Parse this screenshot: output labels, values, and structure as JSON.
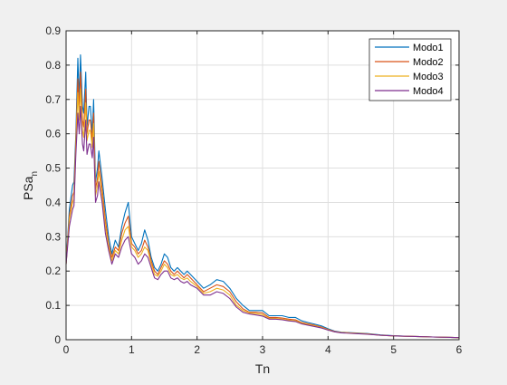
{
  "chart_data": {
    "type": "line",
    "title": "",
    "xlabel": "Tn",
    "ylabel_main": "PSa",
    "ylabel_sub": "n",
    "xlim": [
      0,
      6
    ],
    "ylim": [
      0,
      0.9
    ],
    "xticks": [
      0,
      1,
      2,
      3,
      4,
      5,
      6
    ],
    "yticks": [
      0,
      0.1,
      0.2,
      0.3,
      0.4,
      0.5,
      0.6,
      0.7,
      0.8,
      0.9
    ],
    "grid": true,
    "legend_position": "top-right",
    "colors": {
      "background": "#f0f0f0",
      "axes_bg": "#ffffff",
      "grid": "#dfdfdf",
      "axis": "#262626"
    },
    "x": [
      0,
      0.05,
      0.1,
      0.12,
      0.15,
      0.18,
      0.2,
      0.22,
      0.25,
      0.27,
      0.3,
      0.32,
      0.35,
      0.37,
      0.4,
      0.42,
      0.45,
      0.48,
      0.5,
      0.55,
      0.6,
      0.65,
      0.7,
      0.75,
      0.8,
      0.85,
      0.9,
      0.95,
      1.0,
      1.05,
      1.1,
      1.15,
      1.2,
      1.25,
      1.3,
      1.35,
      1.4,
      1.45,
      1.5,
      1.55,
      1.6,
      1.65,
      1.7,
      1.75,
      1.8,
      1.85,
      1.9,
      2.0,
      2.1,
      2.2,
      2.3,
      2.4,
      2.5,
      2.6,
      2.7,
      2.8,
      2.9,
      3.0,
      3.1,
      3.2,
      3.3,
      3.4,
      3.5,
      3.6,
      3.7,
      3.8,
      3.9,
      4.0,
      4.1,
      4.2,
      4.4,
      4.6,
      4.8,
      5.0,
      5.2,
      5.4,
      5.6,
      5.8,
      6.0
    ],
    "series": [
      {
        "name": "Modo1",
        "color": "#0072bd",
        "values": [
          0.22,
          0.38,
          0.45,
          0.46,
          0.6,
          0.82,
          0.7,
          0.83,
          0.68,
          0.66,
          0.78,
          0.62,
          0.68,
          0.68,
          0.6,
          0.7,
          0.46,
          0.5,
          0.55,
          0.47,
          0.38,
          0.3,
          0.25,
          0.29,
          0.27,
          0.33,
          0.37,
          0.4,
          0.3,
          0.28,
          0.26,
          0.28,
          0.32,
          0.29,
          0.24,
          0.21,
          0.2,
          0.22,
          0.25,
          0.24,
          0.21,
          0.2,
          0.21,
          0.2,
          0.19,
          0.2,
          0.19,
          0.17,
          0.15,
          0.16,
          0.175,
          0.17,
          0.15,
          0.12,
          0.1,
          0.085,
          0.085,
          0.085,
          0.07,
          0.07,
          0.07,
          0.065,
          0.065,
          0.055,
          0.05,
          0.045,
          0.04,
          0.032,
          0.025,
          0.022,
          0.02,
          0.018,
          0.014,
          0.012,
          0.01,
          0.009,
          0.008,
          0.007,
          0.006
        ]
      },
      {
        "name": "Modo2",
        "color": "#d95319",
        "values": [
          0.22,
          0.36,
          0.42,
          0.43,
          0.58,
          0.76,
          0.67,
          0.78,
          0.64,
          0.62,
          0.73,
          0.6,
          0.64,
          0.64,
          0.58,
          0.66,
          0.44,
          0.47,
          0.52,
          0.44,
          0.35,
          0.28,
          0.24,
          0.27,
          0.26,
          0.31,
          0.34,
          0.36,
          0.28,
          0.27,
          0.25,
          0.26,
          0.29,
          0.27,
          0.23,
          0.2,
          0.19,
          0.21,
          0.23,
          0.22,
          0.2,
          0.19,
          0.2,
          0.19,
          0.18,
          0.19,
          0.18,
          0.16,
          0.14,
          0.15,
          0.16,
          0.155,
          0.14,
          0.11,
          0.09,
          0.08,
          0.08,
          0.078,
          0.065,
          0.065,
          0.063,
          0.06,
          0.058,
          0.05,
          0.046,
          0.042,
          0.037,
          0.03,
          0.024,
          0.021,
          0.019,
          0.017,
          0.013,
          0.011,
          0.01,
          0.009,
          0.008,
          0.007,
          0.006
        ]
      },
      {
        "name": "Modo3",
        "color": "#edb120",
        "values": [
          0.22,
          0.35,
          0.4,
          0.41,
          0.56,
          0.72,
          0.64,
          0.73,
          0.61,
          0.59,
          0.69,
          0.58,
          0.61,
          0.61,
          0.56,
          0.63,
          0.42,
          0.45,
          0.49,
          0.42,
          0.33,
          0.27,
          0.23,
          0.26,
          0.25,
          0.29,
          0.32,
          0.33,
          0.27,
          0.26,
          0.24,
          0.25,
          0.27,
          0.26,
          0.22,
          0.19,
          0.185,
          0.2,
          0.22,
          0.21,
          0.19,
          0.185,
          0.19,
          0.18,
          0.175,
          0.18,
          0.17,
          0.155,
          0.135,
          0.14,
          0.15,
          0.145,
          0.13,
          0.1,
          0.085,
          0.078,
          0.076,
          0.073,
          0.062,
          0.062,
          0.06,
          0.057,
          0.055,
          0.048,
          0.044,
          0.04,
          0.035,
          0.029,
          0.023,
          0.021,
          0.019,
          0.017,
          0.013,
          0.011,
          0.01,
          0.009,
          0.008,
          0.007,
          0.006
        ]
      },
      {
        "name": "Modo4",
        "color": "#7e2f8e",
        "values": [
          0.22,
          0.33,
          0.38,
          0.39,
          0.54,
          0.66,
          0.6,
          0.68,
          0.57,
          0.55,
          0.64,
          0.54,
          0.57,
          0.57,
          0.53,
          0.59,
          0.4,
          0.42,
          0.46,
          0.4,
          0.31,
          0.26,
          0.22,
          0.25,
          0.24,
          0.27,
          0.29,
          0.3,
          0.25,
          0.24,
          0.22,
          0.23,
          0.25,
          0.24,
          0.21,
          0.18,
          0.175,
          0.19,
          0.2,
          0.2,
          0.18,
          0.175,
          0.18,
          0.17,
          0.165,
          0.17,
          0.16,
          0.15,
          0.13,
          0.13,
          0.14,
          0.135,
          0.12,
          0.095,
          0.08,
          0.075,
          0.072,
          0.069,
          0.06,
          0.06,
          0.058,
          0.055,
          0.053,
          0.046,
          0.042,
          0.038,
          0.034,
          0.028,
          0.023,
          0.02,
          0.018,
          0.016,
          0.013,
          0.011,
          0.01,
          0.009,
          0.008,
          0.007,
          0.006
        ]
      }
    ]
  }
}
